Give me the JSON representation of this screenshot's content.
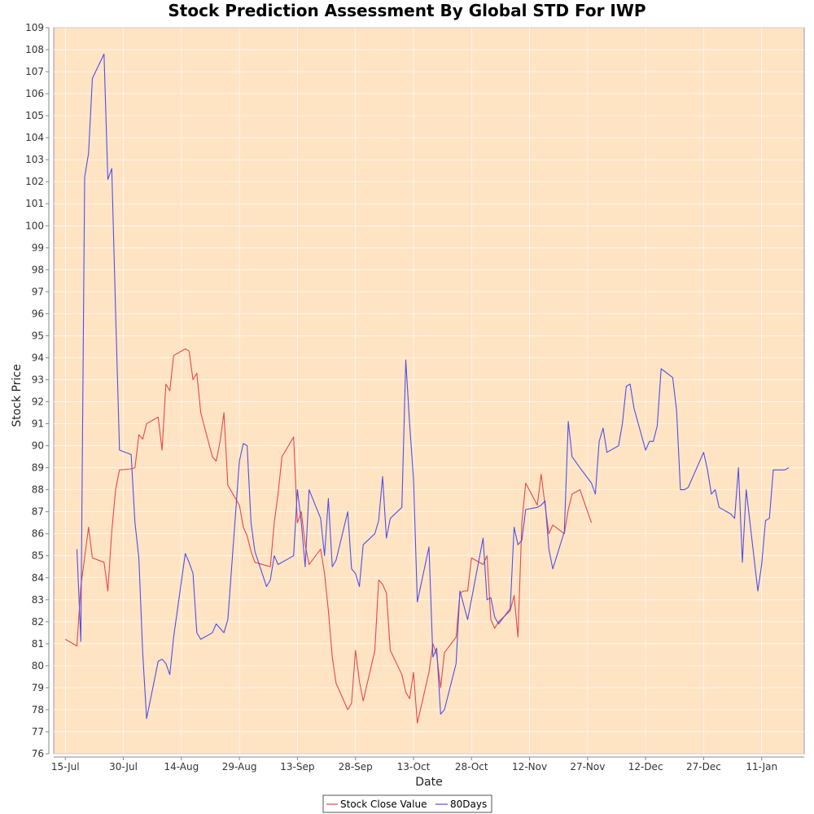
{
  "colors": {
    "plot_background": "#FFE4C4",
    "close_series": "#E8474A",
    "days80_series": "#4F4FE8",
    "grid": "#FFFFFF"
  },
  "chart_data": {
    "type": "line",
    "title": "Stock Prediction Assessment By Global STD For IWP",
    "xlabel": "Date",
    "ylabel": "Stock Price",
    "ylim": [
      76,
      109
    ],
    "xlim": [
      "2021-07-12",
      "2022-01-22"
    ],
    "y_ticks": [
      76,
      77,
      78,
      79,
      80,
      81,
      82,
      83,
      84,
      85,
      86,
      87,
      88,
      89,
      90,
      91,
      92,
      93,
      94,
      95,
      96,
      97,
      98,
      99,
      100,
      101,
      102,
      103,
      104,
      105,
      106,
      107,
      108,
      109
    ],
    "x_ticks": [
      {
        "date": "2021-07-15",
        "label": "15-Jul"
      },
      {
        "date": "2021-07-30",
        "label": "30-Jul"
      },
      {
        "date": "2021-08-14",
        "label": "14-Aug"
      },
      {
        "date": "2021-08-29",
        "label": "29-Aug"
      },
      {
        "date": "2021-09-13",
        "label": "13-Sep"
      },
      {
        "date": "2021-09-28",
        "label": "28-Sep"
      },
      {
        "date": "2021-10-13",
        "label": "13-Oct"
      },
      {
        "date": "2021-10-28",
        "label": "28-Oct"
      },
      {
        "date": "2021-11-12",
        "label": "12-Nov"
      },
      {
        "date": "2021-11-27",
        "label": "27-Nov"
      },
      {
        "date": "2021-12-12",
        "label": "12-Dec"
      },
      {
        "date": "2021-12-27",
        "label": "27-Dec"
      },
      {
        "date": "2022-01-11",
        "label": "11-Jan"
      }
    ],
    "grid": true,
    "legend_position": "bottom-center",
    "series": [
      {
        "name": "Stock Close Value",
        "points": [
          [
            "2021-07-15",
            81.2
          ],
          [
            "2021-07-18",
            80.9
          ],
          [
            "2021-07-19",
            83.6
          ],
          [
            "2021-07-21",
            86.3
          ],
          [
            "2021-07-22",
            84.9
          ],
          [
            "2021-07-25",
            84.7
          ],
          [
            "2021-07-26",
            83.4
          ],
          [
            "2021-07-27",
            86.1
          ],
          [
            "2021-07-28",
            88.0
          ],
          [
            "2021-07-29",
            88.9
          ],
          [
            "2021-08-01",
            88.95
          ],
          [
            "2021-08-02",
            89.0
          ],
          [
            "2021-08-03",
            90.5
          ],
          [
            "2021-08-04",
            90.3
          ],
          [
            "2021-08-05",
            91.0
          ],
          [
            "2021-08-08",
            91.3
          ],
          [
            "2021-08-09",
            89.8
          ],
          [
            "2021-08-10",
            92.8
          ],
          [
            "2021-08-11",
            92.5
          ],
          [
            "2021-08-12",
            94.1
          ],
          [
            "2021-08-15",
            94.4
          ],
          [
            "2021-08-16",
            94.3
          ],
          [
            "2021-08-17",
            93.0
          ],
          [
            "2021-08-18",
            93.3
          ],
          [
            "2021-08-19",
            91.5
          ],
          [
            "2021-08-22",
            89.5
          ],
          [
            "2021-08-23",
            89.3
          ],
          [
            "2021-08-24",
            90.2
          ],
          [
            "2021-08-25",
            91.5
          ],
          [
            "2021-08-26",
            88.2
          ],
          [
            "2021-08-29",
            87.3
          ],
          [
            "2021-08-30",
            86.3
          ],
          [
            "2021-08-31",
            85.9
          ],
          [
            "2021-09-01",
            85.2
          ],
          [
            "2021-09-02",
            84.7
          ],
          [
            "2021-09-06",
            84.5
          ],
          [
            "2021-09-07",
            86.5
          ],
          [
            "2021-09-08",
            87.8
          ],
          [
            "2021-09-09",
            89.5
          ],
          [
            "2021-09-12",
            90.4
          ],
          [
            "2021-09-13",
            86.5
          ],
          [
            "2021-09-14",
            87.0
          ],
          [
            "2021-09-15",
            85.5
          ],
          [
            "2021-09-16",
            84.6
          ],
          [
            "2021-09-19",
            85.3
          ],
          [
            "2021-09-20",
            84.2
          ],
          [
            "2021-09-21",
            82.5
          ],
          [
            "2021-09-22",
            80.4
          ],
          [
            "2021-09-23",
            79.2
          ],
          [
            "2021-09-26",
            78.0
          ],
          [
            "2021-09-27",
            78.3
          ],
          [
            "2021-09-28",
            80.7
          ],
          [
            "2021-09-29",
            79.3
          ],
          [
            "2021-09-30",
            78.4
          ],
          [
            "2021-10-03",
            80.7
          ],
          [
            "2021-10-04",
            83.9
          ],
          [
            "2021-10-05",
            83.7
          ],
          [
            "2021-10-06",
            83.3
          ],
          [
            "2021-10-07",
            80.7
          ],
          [
            "2021-10-10",
            79.6
          ],
          [
            "2021-10-11",
            78.8
          ],
          [
            "2021-10-12",
            78.5
          ],
          [
            "2021-10-13",
            79.7
          ],
          [
            "2021-10-14",
            77.4
          ],
          [
            "2021-10-17",
            79.7
          ],
          [
            "2021-10-18",
            81.0
          ],
          [
            "2021-10-19",
            80.5
          ],
          [
            "2021-10-20",
            79.0
          ],
          [
            "2021-10-21",
            80.6
          ],
          [
            "2021-10-24",
            81.3
          ],
          [
            "2021-10-25",
            83.3
          ],
          [
            "2021-10-26",
            83.4
          ],
          [
            "2021-10-27",
            83.4
          ],
          [
            "2021-10-28",
            84.9
          ],
          [
            "2021-10-31",
            84.6
          ],
          [
            "2021-11-01",
            85.0
          ],
          [
            "2021-11-02",
            82.1
          ],
          [
            "2021-11-03",
            81.7
          ],
          [
            "2021-11-04",
            82.0
          ],
          [
            "2021-11-07",
            82.5
          ],
          [
            "2021-11-08",
            83.2
          ],
          [
            "2021-11-09",
            81.3
          ],
          [
            "2021-11-10",
            86.5
          ],
          [
            "2021-11-11",
            88.3
          ],
          [
            "2021-11-14",
            87.3
          ],
          [
            "2021-11-15",
            88.7
          ],
          [
            "2021-11-16",
            87.3
          ],
          [
            "2021-11-17",
            86.0
          ],
          [
            "2021-11-18",
            86.4
          ],
          [
            "2021-11-21",
            86.0
          ],
          [
            "2021-11-22",
            87.1
          ],
          [
            "2021-11-23",
            87.8
          ],
          [
            "2021-11-25",
            88.0
          ],
          [
            "2021-11-28",
            86.5
          ]
        ]
      },
      {
        "name": "80Days",
        "points": [
          [
            "2021-07-18",
            85.3
          ],
          [
            "2021-07-19",
            81.1
          ],
          [
            "2021-07-20",
            102.2
          ],
          [
            "2021-07-21",
            103.3
          ],
          [
            "2021-07-22",
            106.7
          ],
          [
            "2021-07-25",
            107.8
          ],
          [
            "2021-07-26",
            102.1
          ],
          [
            "2021-07-27",
            102.6
          ],
          [
            "2021-07-28",
            96.1
          ],
          [
            "2021-07-29",
            89.8
          ],
          [
            "2021-08-01",
            89.6
          ],
          [
            "2021-08-02",
            86.5
          ],
          [
            "2021-08-03",
            84.9
          ],
          [
            "2021-08-04",
            80.6
          ],
          [
            "2021-08-05",
            77.6
          ],
          [
            "2021-08-08",
            80.2
          ],
          [
            "2021-08-09",
            80.3
          ],
          [
            "2021-08-10",
            80.1
          ],
          [
            "2021-08-11",
            79.6
          ],
          [
            "2021-08-12",
            81.3
          ],
          [
            "2021-08-15",
            85.1
          ],
          [
            "2021-08-16",
            84.7
          ],
          [
            "2021-08-17",
            84.2
          ],
          [
            "2021-08-18",
            81.5
          ],
          [
            "2021-08-19",
            81.2
          ],
          [
            "2021-08-22",
            81.5
          ],
          [
            "2021-08-23",
            81.9
          ],
          [
            "2021-08-25",
            81.5
          ],
          [
            "2021-08-26",
            82.1
          ],
          [
            "2021-08-29",
            89.3
          ],
          [
            "2021-08-30",
            90.1
          ],
          [
            "2021-08-31",
            90.0
          ],
          [
            "2021-09-01",
            86.5
          ],
          [
            "2021-09-02",
            85.2
          ],
          [
            "2021-09-05",
            83.6
          ],
          [
            "2021-09-06",
            83.9
          ],
          [
            "2021-09-07",
            85.0
          ],
          [
            "2021-09-08",
            84.6
          ],
          [
            "2021-09-12",
            85.0
          ],
          [
            "2021-09-13",
            88.0
          ],
          [
            "2021-09-14",
            86.5
          ],
          [
            "2021-09-15",
            84.5
          ],
          [
            "2021-09-16",
            88.0
          ],
          [
            "2021-09-19",
            86.7
          ],
          [
            "2021-09-20",
            85.0
          ],
          [
            "2021-09-21",
            87.6
          ],
          [
            "2021-09-22",
            84.5
          ],
          [
            "2021-09-23",
            84.8
          ],
          [
            "2021-09-26",
            87.0
          ],
          [
            "2021-09-27",
            84.4
          ],
          [
            "2021-09-28",
            84.2
          ],
          [
            "2021-09-29",
            83.6
          ],
          [
            "2021-09-30",
            85.5
          ],
          [
            "2021-10-03",
            86.0
          ],
          [
            "2021-10-04",
            86.6
          ],
          [
            "2021-10-05",
            88.6
          ],
          [
            "2021-10-06",
            85.8
          ],
          [
            "2021-10-07",
            86.7
          ],
          [
            "2021-10-10",
            87.2
          ],
          [
            "2021-10-11",
            93.9
          ],
          [
            "2021-10-12",
            91.0
          ],
          [
            "2021-10-13",
            88.5
          ],
          [
            "2021-10-14",
            82.9
          ],
          [
            "2021-10-17",
            85.4
          ],
          [
            "2021-10-18",
            80.4
          ],
          [
            "2021-10-19",
            80.8
          ],
          [
            "2021-10-20",
            77.8
          ],
          [
            "2021-10-21",
            78.0
          ],
          [
            "2021-10-24",
            80.1
          ],
          [
            "2021-10-25",
            83.4
          ],
          [
            "2021-10-27",
            82.1
          ],
          [
            "2021-10-31",
            85.8
          ],
          [
            "2021-11-01",
            83.0
          ],
          [
            "2021-11-02",
            83.1
          ],
          [
            "2021-11-03",
            82.2
          ],
          [
            "2021-11-04",
            81.9
          ],
          [
            "2021-11-07",
            82.6
          ],
          [
            "2021-11-08",
            86.3
          ],
          [
            "2021-11-09",
            85.5
          ],
          [
            "2021-11-10",
            85.7
          ],
          [
            "2021-11-11",
            87.1
          ],
          [
            "2021-11-14",
            87.2
          ],
          [
            "2021-11-15",
            87.3
          ],
          [
            "2021-11-16",
            87.5
          ],
          [
            "2021-11-17",
            85.3
          ],
          [
            "2021-11-18",
            84.4
          ],
          [
            "2021-11-21",
            86.1
          ],
          [
            "2021-11-22",
            91.1
          ],
          [
            "2021-11-23",
            89.5
          ],
          [
            "2021-11-25",
            89.0
          ],
          [
            "2021-11-28",
            88.3
          ],
          [
            "2021-11-29",
            87.8
          ],
          [
            "2021-11-30",
            90.2
          ],
          [
            "2021-12-01",
            90.8
          ],
          [
            "2021-12-02",
            89.7
          ],
          [
            "2021-12-05",
            90.0
          ],
          [
            "2021-12-06",
            91.0
          ],
          [
            "2021-12-07",
            92.7
          ],
          [
            "2021-12-08",
            92.8
          ],
          [
            "2021-12-09",
            91.7
          ],
          [
            "2021-12-12",
            89.8
          ],
          [
            "2021-12-13",
            90.2
          ],
          [
            "2021-12-14",
            90.2
          ],
          [
            "2021-12-15",
            90.9
          ],
          [
            "2021-12-16",
            93.5
          ],
          [
            "2021-12-19",
            93.1
          ],
          [
            "2021-12-20",
            91.6
          ],
          [
            "2021-12-21",
            88.0
          ],
          [
            "2021-12-22",
            88.0
          ],
          [
            "2021-12-23",
            88.1
          ],
          [
            "2021-12-27",
            89.7
          ],
          [
            "2021-12-28",
            88.9
          ],
          [
            "2021-12-29",
            87.8
          ],
          [
            "2021-12-30",
            88.0
          ],
          [
            "2021-12-31",
            87.2
          ],
          [
            "2022-01-03",
            86.9
          ],
          [
            "2022-01-04",
            86.7
          ],
          [
            "2022-01-05",
            89.0
          ],
          [
            "2022-01-06",
            84.7
          ],
          [
            "2022-01-07",
            88.0
          ],
          [
            "2022-01-10",
            83.4
          ],
          [
            "2022-01-11",
            84.6
          ],
          [
            "2022-01-12",
            86.6
          ],
          [
            "2022-01-13",
            86.7
          ],
          [
            "2022-01-14",
            88.9
          ],
          [
            "2022-01-17",
            88.9
          ],
          [
            "2022-01-18",
            89.0
          ]
        ]
      }
    ]
  }
}
